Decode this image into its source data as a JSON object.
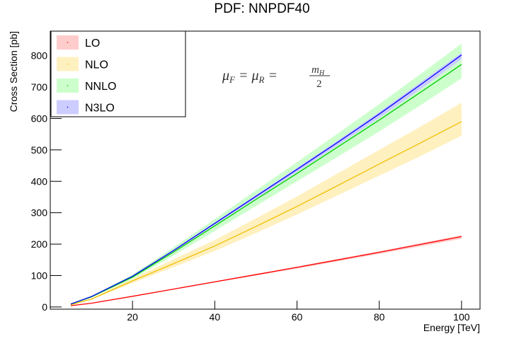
{
  "chart_data": {
    "type": "line",
    "title": "PDF: NNPDF40",
    "x_label": "Energy [TeV]",
    "y_label": "Cross Section [pb]",
    "x": [
      5,
      10,
      20,
      30,
      40,
      50,
      60,
      70,
      80,
      90,
      100
    ],
    "series": [
      {
        "name": "LO",
        "color": "#ff0000",
        "band_color": "#ffcccc",
        "values": [
          4,
          12,
          34,
          57,
          80,
          103,
          126,
          150,
          174,
          199,
          224
        ],
        "lower": [
          3.9,
          11.6,
          33,
          55.3,
          77.6,
          99.9,
          122,
          145.5,
          168.8,
          193,
          217
        ],
        "upper": [
          4.1,
          12.2,
          34.7,
          58.1,
          81.6,
          105,
          128.5,
          153,
          177.5,
          203,
          228.5
        ]
      },
      {
        "name": "NLO",
        "color": "#f0c000",
        "band_color": "#fff0c0",
        "values": [
          7,
          25,
          83,
          138,
          194,
          256,
          320,
          387,
          455,
          522,
          590
        ],
        "lower": [
          6.4,
          23,
          76,
          127,
          178,
          235,
          294,
          356,
          418,
          480,
          545
        ],
        "upper": [
          7.7,
          27.5,
          91,
          152,
          213,
          282,
          352,
          426,
          500,
          574,
          650
        ]
      },
      {
        "name": "NNLO",
        "color": "#00cc00",
        "band_color": "#ccffcc",
        "values": [
          9,
          32,
          95,
          175,
          258,
          342,
          425,
          510,
          595,
          683,
          772
        ],
        "lower": [
          8.5,
          30,
          89,
          164,
          242,
          321,
          400,
          479,
          559,
          642,
          728
        ],
        "upper": [
          9.8,
          34.7,
          103,
          190,
          280,
          371,
          461,
          553,
          646,
          741,
          838
        ]
      },
      {
        "name": "N3LO",
        "color": "#0000ff",
        "band_color": "#ccccff",
        "values": [
          9.5,
          33,
          98,
          180,
          266,
          352,
          438,
          525,
          614,
          707,
          802
        ],
        "lower": [
          9.3,
          32.4,
          96,
          176,
          261,
          345,
          429,
          515,
          602,
          693,
          789
        ],
        "upper": [
          9.6,
          33.4,
          99,
          182,
          269,
          356,
          443,
          531,
          621,
          715,
          810
        ]
      }
    ],
    "xlim": [
      0,
      104.5
    ],
    "ylim": [
      -7,
      878
    ],
    "xticks": [
      20,
      40,
      60,
      80,
      100
    ],
    "yticks": [
      0,
      100,
      200,
      300,
      400,
      500,
      600,
      700,
      800
    ],
    "legend": "top-left",
    "annotation": {
      "parts": [
        "μ",
        "F",
        " = μ",
        "R",
        " = "
      ],
      "numerator": [
        "m",
        "H"
      ],
      "denominator": "2"
    }
  }
}
